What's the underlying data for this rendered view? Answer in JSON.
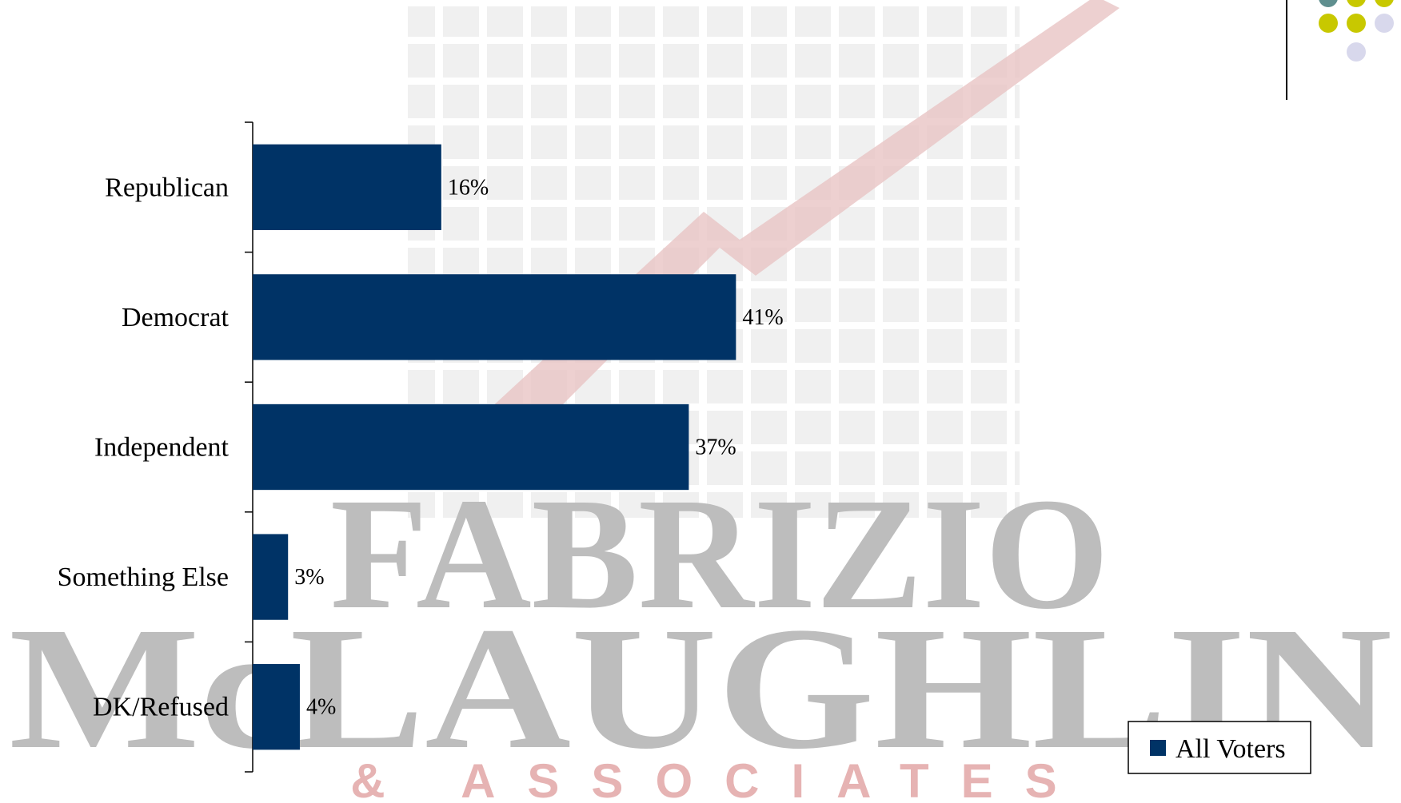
{
  "chart_data": {
    "type": "bar",
    "orientation": "horizontal",
    "categories": [
      "Republican",
      "Democrat",
      "Independent",
      "Something Else",
      "DK/Refused"
    ],
    "series": [
      {
        "name": "All Voters",
        "color": "#003366",
        "values": [
          16,
          41,
          37,
          3,
          4
        ],
        "value_labels": [
          "16%",
          "41%",
          "37%",
          "3%",
          "4%"
        ]
      }
    ],
    "xlim": [
      0,
      50
    ],
    "legend": "lower right",
    "watermark": [
      "FABRIZIO",
      "McLAUGHLIN",
      "& ASSOCIATES"
    ]
  }
}
